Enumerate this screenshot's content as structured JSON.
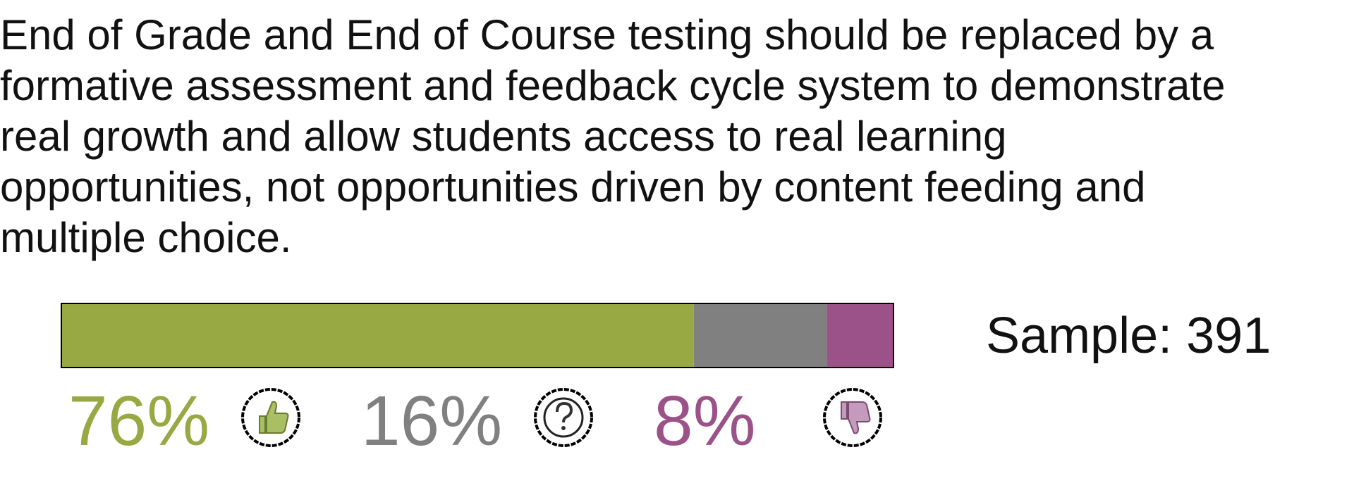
{
  "chart_data": {
    "type": "bar",
    "title": "End of Grade and End of Course testing should be replaced by a formative assessment and feedback cycle system to demonstrate real growth and allow students access to real learning opportunities, not opportunities driven by content feeding and multiple choice.",
    "series": [
      {
        "color": "#98a843",
        "values": [
          76
        ],
        "value_labels": [
          "76%"
        ]
      },
      {
        "color": "#808080",
        "values": [
          16
        ],
        "value_labels": [
          "16%"
        ]
      },
      {
        "color": "#9b5289",
        "values": [
          8
        ],
        "value_labels": [
          "8%"
        ]
      }
    ],
    "xlim": [
      0,
      100
    ],
    "annotation": "Sample: 391"
  }
}
